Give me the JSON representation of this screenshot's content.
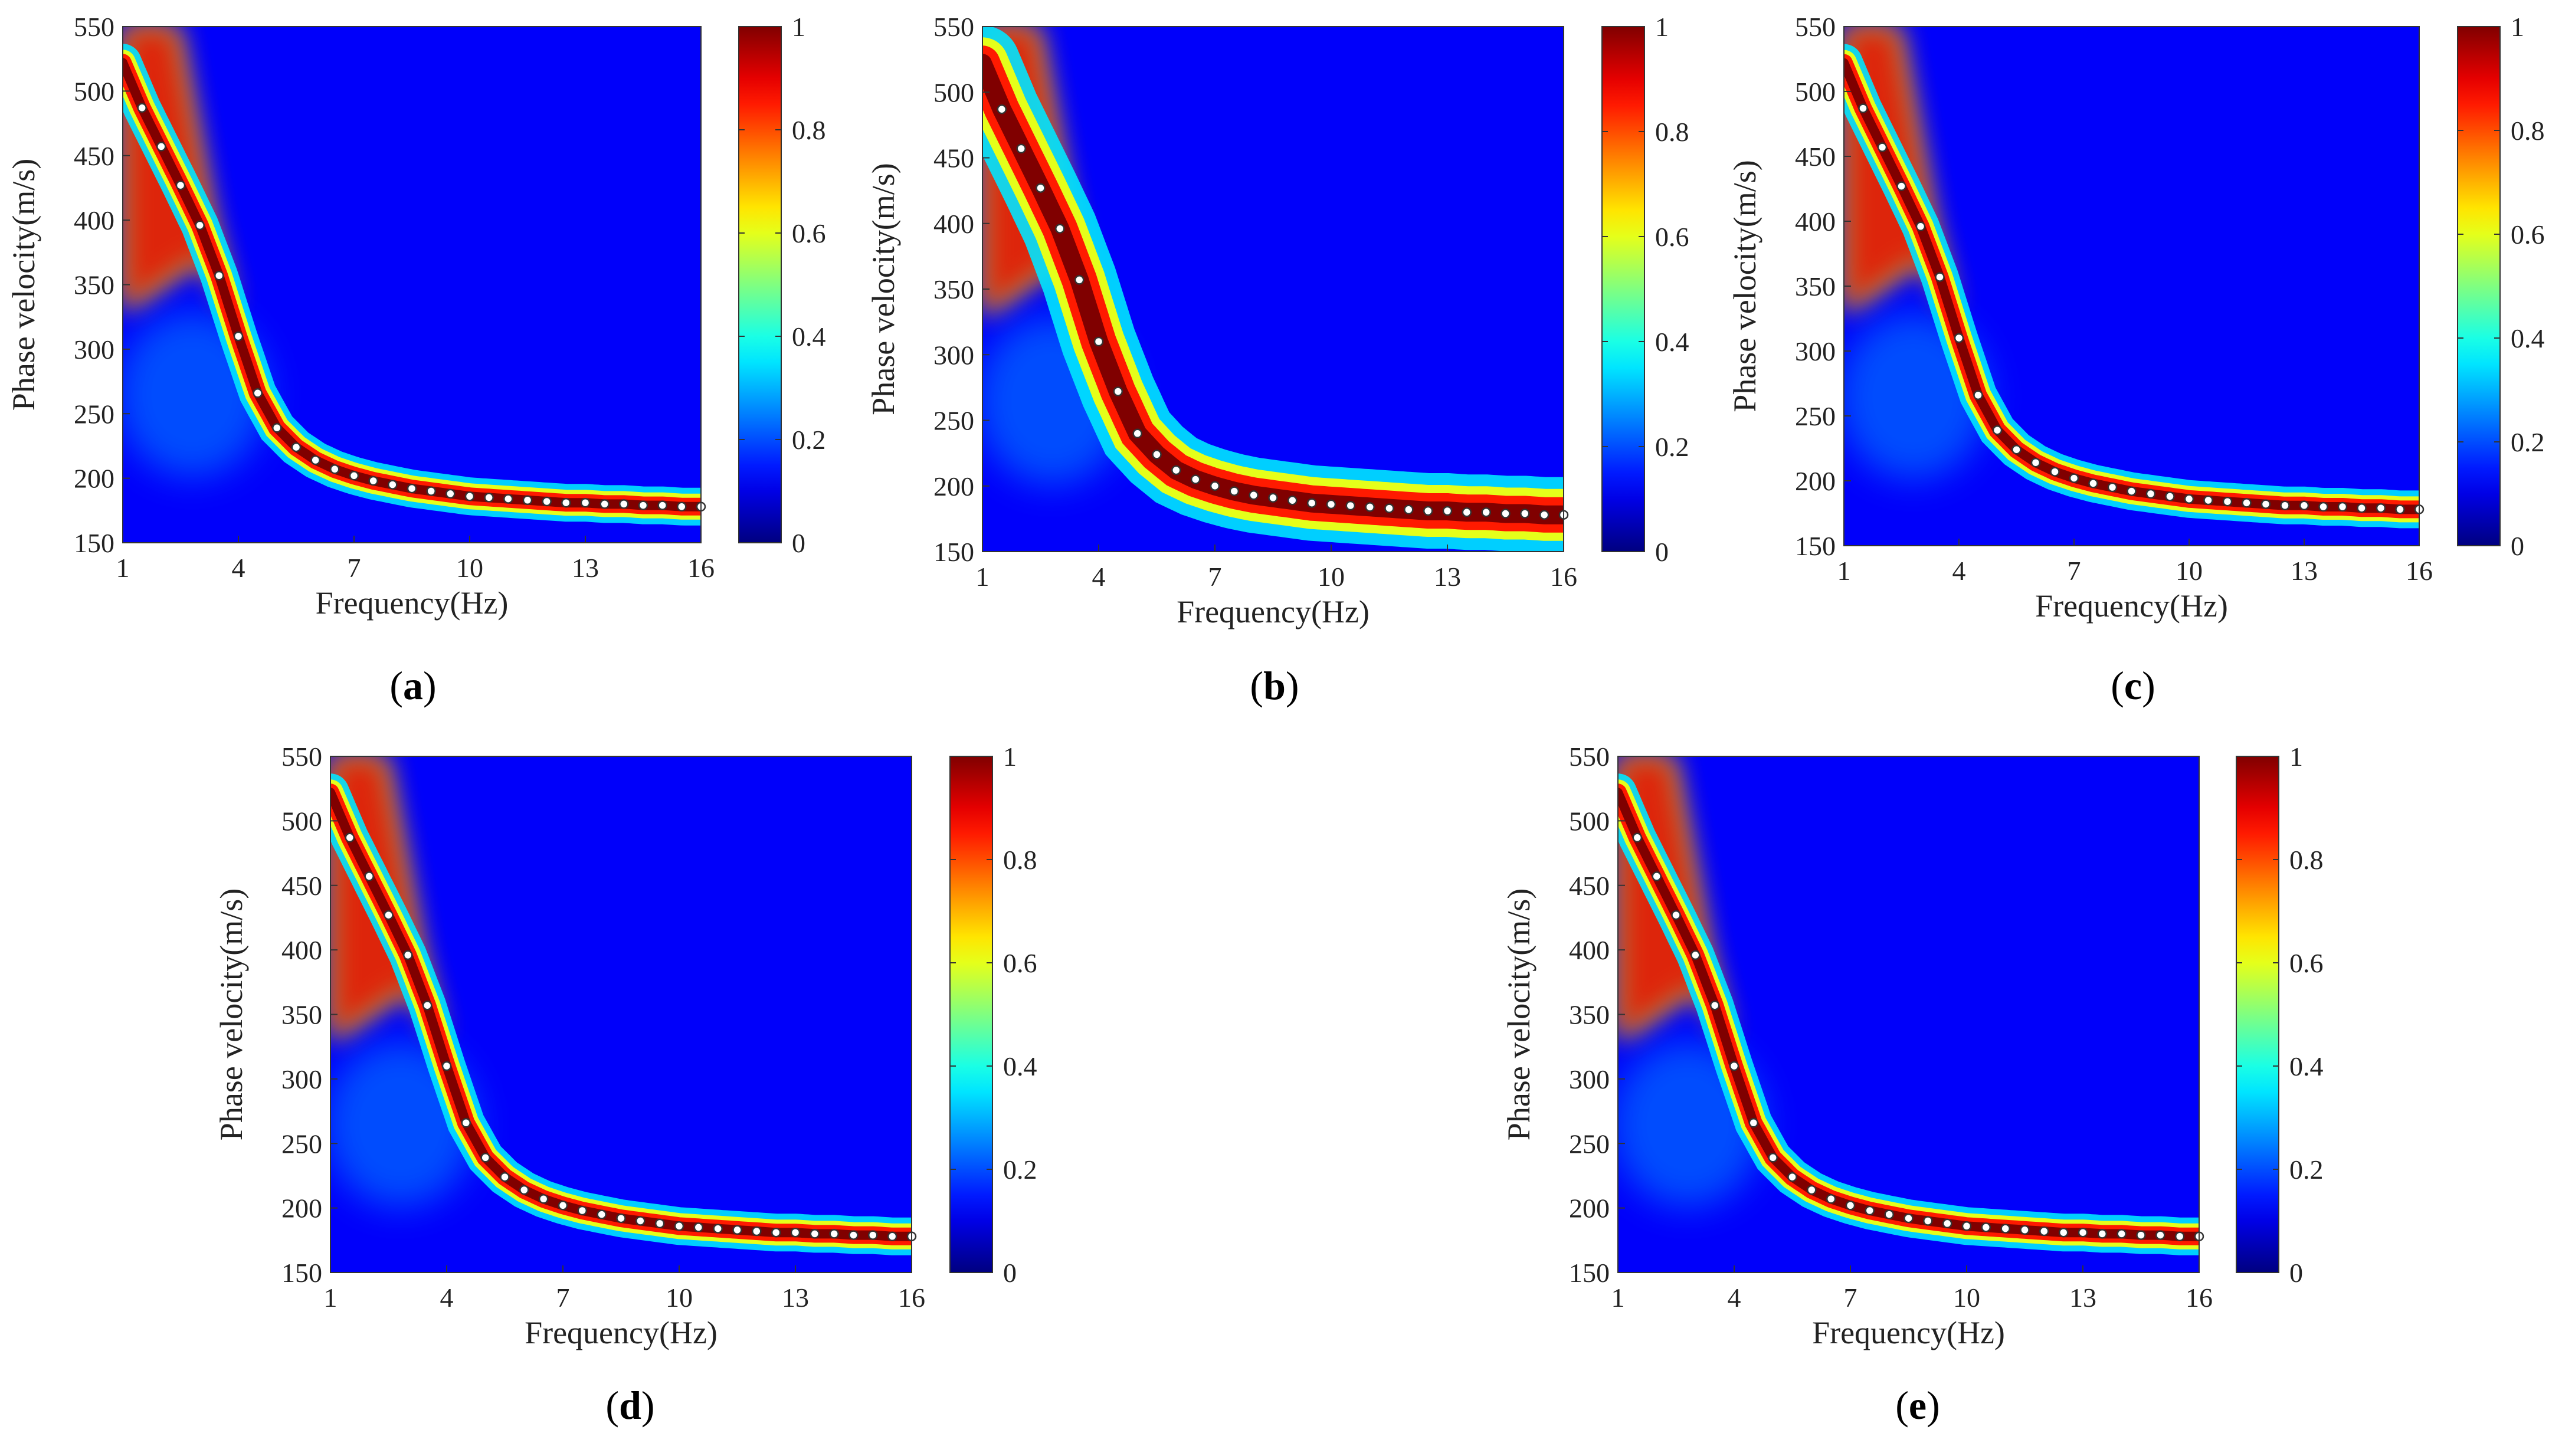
{
  "figure": {
    "panel_count": 5,
    "colormap": "jet",
    "colorbar_ticks": [
      "0",
      "0.2",
      "0.4",
      "0.6",
      "0.8",
      "1"
    ]
  },
  "chart_data": [
    {
      "type": "heatmap",
      "caption_label": "a",
      "xlabel": "Frequency(Hz)",
      "ylabel": "Phase velocity(m/s)",
      "xlim": [
        1,
        16
      ],
      "ylim": [
        150,
        550
      ],
      "xticks": [
        "1",
        "4",
        "7",
        "10",
        "13",
        "16"
      ],
      "yticks": [
        "150",
        "200",
        "250",
        "300",
        "350",
        "400",
        "450",
        "500",
        "550"
      ],
      "clim": [
        0,
        1
      ],
      "ridge_width": 1.0,
      "dispersion_points": {
        "frequency": [
          1.5,
          2.0,
          2.5,
          3.0,
          3.5,
          4.0,
          4.5,
          5.0,
          5.5,
          6.0,
          6.5,
          7.0,
          7.5,
          8.0,
          8.5,
          9.0,
          9.5,
          10.0,
          10.5,
          11.0,
          11.5,
          12.0,
          12.5,
          13.0,
          13.5,
          14.0,
          14.5,
          15.0,
          15.5,
          16.0
        ],
        "velocity": [
          487,
          457,
          427,
          396,
          357,
          310,
          266,
          239,
          224,
          214,
          207,
          202,
          198,
          195,
          192,
          190,
          188,
          186,
          185,
          184,
          183,
          182,
          181,
          181,
          180,
          180,
          179,
          179,
          178,
          178
        ]
      }
    },
    {
      "type": "heatmap",
      "caption_label": "b",
      "xlabel": "Frequency(Hz)",
      "ylabel": "Phase velocity(m/s)",
      "xlim": [
        1,
        16
      ],
      "ylim": [
        150,
        550
      ],
      "xticks": [
        "1",
        "4",
        "7",
        "10",
        "13",
        "16"
      ],
      "yticks": [
        "150",
        "200",
        "250",
        "300",
        "350",
        "400",
        "450",
        "500",
        "550"
      ],
      "clim": [
        0,
        1
      ],
      "ridge_width": 2.0,
      "dispersion_points": {
        "frequency": [
          1.5,
          2.0,
          2.5,
          3.0,
          3.5,
          4.0,
          4.5,
          5.0,
          5.5,
          6.0,
          6.5,
          7.0,
          7.5,
          8.0,
          8.5,
          9.0,
          9.5,
          10.0,
          10.5,
          11.0,
          11.5,
          12.0,
          12.5,
          13.0,
          13.5,
          14.0,
          14.5,
          15.0,
          15.5,
          16.0
        ],
        "velocity": [
          487,
          457,
          427,
          396,
          357,
          310,
          272,
          240,
          224,
          212,
          205,
          200,
          196,
          193,
          191,
          189,
          187,
          186,
          185,
          184,
          183,
          182,
          181,
          181,
          180,
          180,
          179,
          179,
          178,
          178
        ]
      }
    },
    {
      "type": "heatmap",
      "caption_label": "c",
      "xlabel": "Frequency(Hz)",
      "ylabel": "Phase velocity(m/s)",
      "xlim": [
        1,
        16
      ],
      "ylim": [
        150,
        550
      ],
      "xticks": [
        "1",
        "4",
        "7",
        "10",
        "13",
        "16"
      ],
      "yticks": [
        "150",
        "200",
        "250",
        "300",
        "350",
        "400",
        "450",
        "500",
        "550"
      ],
      "clim": [
        0,
        1
      ],
      "ridge_width": 1.0,
      "dispersion_points": {
        "frequency": [
          1.5,
          2.0,
          2.5,
          3.0,
          3.5,
          4.0,
          4.5,
          5.0,
          5.5,
          6.0,
          6.5,
          7.0,
          7.5,
          8.0,
          8.5,
          9.0,
          9.5,
          10.0,
          10.5,
          11.0,
          11.5,
          12.0,
          12.5,
          13.0,
          13.5,
          14.0,
          14.5,
          15.0,
          15.5,
          16.0
        ],
        "velocity": [
          487,
          457,
          427,
          396,
          357,
          310,
          266,
          239,
          224,
          214,
          207,
          202,
          198,
          195,
          192,
          190,
          188,
          186,
          185,
          184,
          183,
          182,
          181,
          181,
          180,
          180,
          179,
          179,
          178,
          178
        ]
      }
    },
    {
      "type": "heatmap",
      "caption_label": "d",
      "xlabel": "Frequency(Hz)",
      "ylabel": "Phase velocity(m/s)",
      "xlim": [
        1,
        16
      ],
      "ylim": [
        150,
        550
      ],
      "xticks": [
        "1",
        "4",
        "7",
        "10",
        "13",
        "16"
      ],
      "yticks": [
        "150",
        "200",
        "250",
        "300",
        "350",
        "400",
        "450",
        "500",
        "550"
      ],
      "clim": [
        0,
        1
      ],
      "ridge_width": 1.0,
      "dispersion_points": {
        "frequency": [
          1.5,
          2.0,
          2.5,
          3.0,
          3.5,
          4.0,
          4.5,
          5.0,
          5.5,
          6.0,
          6.5,
          7.0,
          7.5,
          8.0,
          8.5,
          9.0,
          9.5,
          10.0,
          10.5,
          11.0,
          11.5,
          12.0,
          12.5,
          13.0,
          13.5,
          14.0,
          14.5,
          15.0,
          15.5,
          16.0
        ],
        "velocity": [
          487,
          457,
          427,
          396,
          357,
          310,
          266,
          239,
          224,
          214,
          207,
          202,
          198,
          195,
          192,
          190,
          188,
          186,
          185,
          184,
          183,
          182,
          181,
          181,
          180,
          180,
          179,
          179,
          178,
          178
        ]
      }
    },
    {
      "type": "heatmap",
      "caption_label": "e",
      "xlabel": "Frequency(Hz)",
      "ylabel": "Phase velocity(m/s)",
      "xlim": [
        1,
        16
      ],
      "ylim": [
        150,
        550
      ],
      "xticks": [
        "1",
        "4",
        "7",
        "10",
        "13",
        "16"
      ],
      "yticks": [
        "150",
        "200",
        "250",
        "300",
        "350",
        "400",
        "450",
        "500",
        "550"
      ],
      "clim": [
        0,
        1
      ],
      "ridge_width": 1.0,
      "dispersion_points": {
        "frequency": [
          1.5,
          2.0,
          2.5,
          3.0,
          3.5,
          4.0,
          4.5,
          5.0,
          5.5,
          6.0,
          6.5,
          7.0,
          7.5,
          8.0,
          8.5,
          9.0,
          9.5,
          10.0,
          10.5,
          11.0,
          11.5,
          12.0,
          12.5,
          13.0,
          13.5,
          14.0,
          14.5,
          15.0,
          15.5,
          16.0
        ],
        "velocity": [
          487,
          457,
          427,
          396,
          357,
          310,
          266,
          239,
          224,
          214,
          207,
          202,
          198,
          195,
          192,
          190,
          188,
          186,
          185,
          184,
          183,
          182,
          181,
          181,
          180,
          180,
          179,
          179,
          178,
          178
        ]
      }
    }
  ]
}
